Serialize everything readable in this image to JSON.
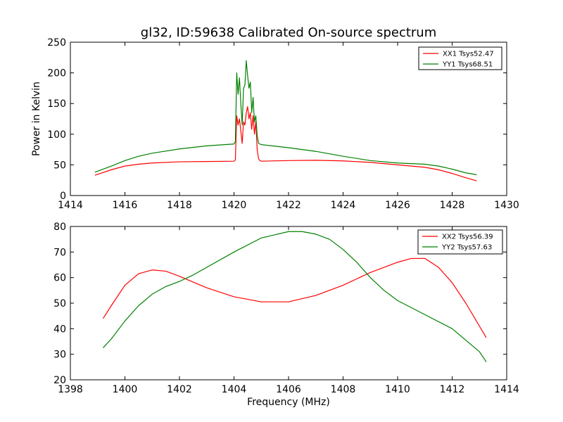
{
  "chart_data": [
    {
      "type": "line",
      "title": "gl32, ID:59638 Calibrated On-source spectrum",
      "xlabel": "",
      "ylabel": "Power in Kelvin",
      "xlim": [
        1414,
        1430
      ],
      "ylim": [
        0,
        250
      ],
      "xticks": [
        "1414",
        "1416",
        "1418",
        "1420",
        "1422",
        "1424",
        "1426",
        "1428",
        "1430"
      ],
      "yticks": [
        "0",
        "50",
        "100",
        "150",
        "200",
        "250"
      ],
      "grid": false,
      "legend": "top-right",
      "series": [
        {
          "name": "XX1 Tsys52.47",
          "color": "#ff0000",
          "x": [
            1414.9,
            1415.5,
            1416,
            1416.5,
            1417,
            1418,
            1419,
            1420,
            1420.05,
            1420.1,
            1420.15,
            1420.2,
            1420.25,
            1420.3,
            1420.35,
            1420.4,
            1420.45,
            1420.5,
            1420.55,
            1420.6,
            1420.65,
            1420.7,
            1420.75,
            1420.8,
            1420.85,
            1420.9,
            1420.95,
            1421,
            1422,
            1423,
            1424,
            1425,
            1426,
            1427,
            1427.5,
            1428,
            1428.5,
            1428.9
          ],
          "y": [
            33,
            42,
            48,
            51,
            53,
            55,
            55.5,
            56,
            58,
            130,
            115,
            125,
            105,
            85,
            120,
            115,
            135,
            145,
            125,
            135,
            108,
            130,
            100,
            120,
            75,
            60,
            57,
            56,
            57,
            57.5,
            56.5,
            54,
            50,
            46,
            42,
            36,
            29,
            24
          ]
        },
        {
          "name": "YY1 Tsys68.51",
          "color": "#008000",
          "x": [
            1414.9,
            1415.5,
            1416,
            1416.5,
            1417,
            1418,
            1419,
            1420,
            1420.05,
            1420.1,
            1420.15,
            1420.2,
            1420.25,
            1420.3,
            1420.35,
            1420.4,
            1420.45,
            1420.5,
            1420.55,
            1420.6,
            1420.65,
            1420.7,
            1420.75,
            1420.8,
            1420.85,
            1420.9,
            1420.95,
            1421,
            1422,
            1423,
            1424,
            1425,
            1426,
            1427,
            1427.5,
            1428,
            1428.5,
            1428.9
          ],
          "y": [
            38,
            48,
            57,
            64,
            69,
            76,
            81,
            84,
            88,
            200,
            165,
            192,
            150,
            115,
            175,
            180,
            220,
            195,
            175,
            185,
            135,
            160,
            120,
            130,
            98,
            85,
            84,
            83,
            78,
            72,
            64,
            57,
            53,
            51,
            48,
            43,
            37,
            34
          ]
        }
      ]
    },
    {
      "type": "line",
      "title": "",
      "xlabel": "Frequency (MHz)",
      "ylabel": "",
      "xlim": [
        1398,
        1414
      ],
      "ylim": [
        20,
        80
      ],
      "xticks": [
        "1398",
        "1400",
        "1402",
        "1404",
        "1406",
        "1408",
        "1410",
        "1412",
        "1414"
      ],
      "yticks": [
        "20",
        "30",
        "40",
        "50",
        "60",
        "70",
        "80"
      ],
      "grid": false,
      "legend": "top-right",
      "series": [
        {
          "name": "XX2 Tsys56.39",
          "color": "#ff0000",
          "x": [
            1399.2,
            1399.5,
            1400,
            1400.5,
            1401,
            1401.5,
            1402,
            1403,
            1404,
            1405,
            1406,
            1407,
            1408,
            1409,
            1410,
            1410.5,
            1411,
            1411.5,
            1412,
            1412.5,
            1413,
            1413.25
          ],
          "y": [
            44,
            49,
            57,
            61.5,
            63,
            62.5,
            60.5,
            56,
            52.5,
            50.5,
            50.5,
            53,
            57,
            62,
            66,
            67.5,
            67.5,
            64,
            58,
            50,
            41,
            36.5
          ]
        },
        {
          "name": "YY2 Tsys57.63",
          "color": "#008000",
          "x": [
            1399.2,
            1399.5,
            1400,
            1400.5,
            1401,
            1401.5,
            1402,
            1402.5,
            1403,
            1404,
            1405,
            1406,
            1406.5,
            1407,
            1407.5,
            1408,
            1408.5,
            1409,
            1409.5,
            1410,
            1411,
            1412,
            1413,
            1413.25
          ],
          "y": [
            32.5,
            36,
            43,
            49,
            53.5,
            56.5,
            58.5,
            61,
            64,
            70,
            75.5,
            78,
            78,
            77,
            75,
            71,
            66,
            60,
            55,
            51,
            45.5,
            40,
            31,
            27
          ]
        }
      ]
    }
  ]
}
